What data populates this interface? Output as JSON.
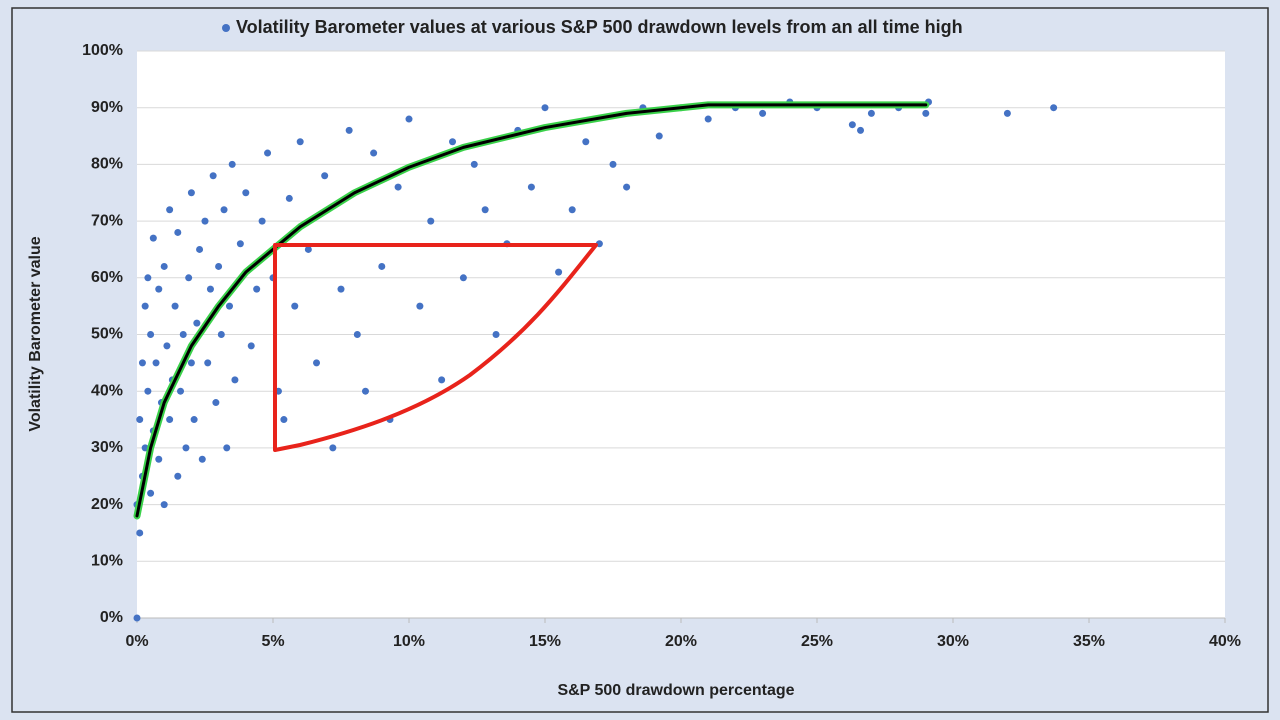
{
  "chart_data": {
    "type": "scatter",
    "x_label": "S&P 500 drawdown percentage",
    "y_label": "Volatility Barometer value",
    "xlim": [
      0,
      40
    ],
    "ylim": [
      0,
      100
    ],
    "xticks": [
      {
        "value": 0,
        "label": "0%"
      },
      {
        "value": 5,
        "label": "5%"
      },
      {
        "value": 10,
        "label": "10%"
      },
      {
        "value": 15,
        "label": "15%"
      },
      {
        "value": 20,
        "label": "20%"
      },
      {
        "value": 25,
        "label": "25%"
      },
      {
        "value": 30,
        "label": "30%"
      },
      {
        "value": 35,
        "label": "35%"
      },
      {
        "value": 40,
        "label": "40%"
      }
    ],
    "yticks": [
      {
        "value": 0,
        "label": "0%"
      },
      {
        "value": 10,
        "label": "10%"
      },
      {
        "value": 20,
        "label": "20%"
      },
      {
        "value": 30,
        "label": "30%"
      },
      {
        "value": 40,
        "label": "40%"
      },
      {
        "value": 50,
        "label": "50%"
      },
      {
        "value": 60,
        "label": "60%"
      },
      {
        "value": 70,
        "label": "70%"
      },
      {
        "value": 80,
        "label": "80%"
      },
      {
        "value": 90,
        "label": "90%"
      },
      {
        "value": 100,
        "label": "100%"
      }
    ],
    "grid": true,
    "legend": "top",
    "series": [
      {
        "name": "Volatility Barometer values at various S&P 500 drawdown levels from an all time high",
        "color": "#4472c4",
        "x": [
          0,
          0,
          0.1,
          0.1,
          0.2,
          0.2,
          0.3,
          0.3,
          0.4,
          0.4,
          0.5,
          0.5,
          0.6,
          0.6,
          0.7,
          0.8,
          0.8,
          0.9,
          1,
          1,
          1.1,
          1.2,
          1.2,
          1.3,
          1.4,
          1.5,
          1.5,
          1.6,
          1.7,
          1.8,
          1.9,
          2,
          2,
          2.1,
          2.2,
          2.3,
          2.4,
          2.5,
          2.6,
          2.7,
          2.8,
          2.9,
          3,
          3.1,
          3.2,
          3.3,
          3.4,
          3.5,
          3.6,
          3.8,
          4,
          4.2,
          4.4,
          4.6,
          4.8,
          5,
          5.2,
          5.4,
          5.6,
          5.8,
          6,
          6.3,
          6.6,
          6.9,
          7.2,
          7.5,
          7.8,
          8.1,
          8.4,
          8.7,
          9,
          9.3,
          9.6,
          10,
          10.4,
          10.8,
          11.2,
          11.6,
          12,
          12.4,
          12.8,
          13.2,
          13.6,
          14,
          14.5,
          15,
          15.5,
          16,
          16.5,
          17,
          17.5,
          18,
          18.6,
          19.2,
          20,
          21,
          22,
          23,
          24,
          25,
          26.3,
          26.6,
          27,
          28,
          29,
          29.1,
          32,
          33.7
        ],
        "values": [
          0,
          20,
          15,
          35,
          45,
          25,
          55,
          30,
          40,
          60,
          22,
          50,
          33,
          67,
          45,
          28,
          58,
          38,
          20,
          62,
          48,
          35,
          72,
          42,
          55,
          25,
          68,
          40,
          50,
          30,
          60,
          45,
          75,
          35,
          52,
          65,
          28,
          70,
          45,
          58,
          78,
          38,
          62,
          50,
          72,
          30,
          55,
          80,
          42,
          66,
          75,
          48,
          58,
          70,
          82,
          60,
          40,
          35,
          74,
          55,
          84,
          65,
          45,
          78,
          30,
          58,
          86,
          50,
          40,
          82,
          62,
          35,
          76,
          88,
          55,
          70,
          42,
          84,
          60,
          80,
          72,
          50,
          66,
          86,
          76,
          90,
          61,
          72,
          84,
          66,
          80,
          76,
          90,
          85,
          90,
          88,
          90,
          89,
          91,
          90,
          87,
          86,
          89,
          90,
          89,
          91,
          89,
          90
        ]
      }
    ],
    "trendline": {
      "color": "#000000",
      "outline_color": "#3ad14a",
      "x": [
        0,
        0.5,
        1,
        2,
        3,
        4,
        5,
        6,
        8,
        10,
        12,
        15,
        18,
        21,
        25,
        29
      ],
      "values": [
        18,
        30,
        38,
        48,
        55,
        61,
        65,
        69,
        75,
        79.5,
        83,
        86.5,
        89,
        90.5,
        90.5,
        90.5
      ]
    }
  }
}
